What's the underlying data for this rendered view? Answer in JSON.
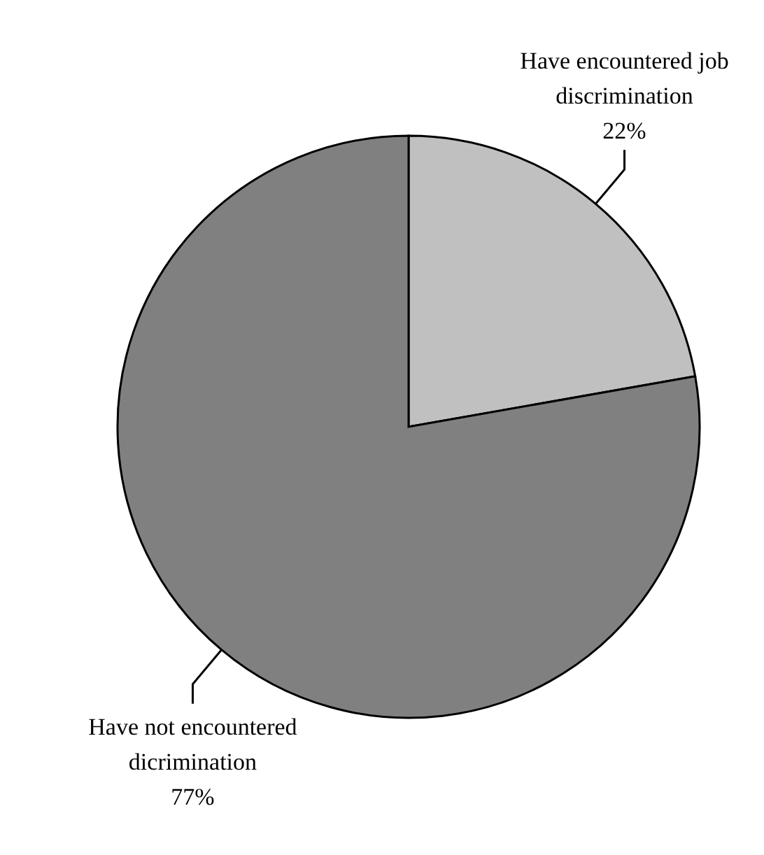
{
  "chart_data": {
    "type": "pie",
    "categories": [
      "Have encountered job discrimination",
      "Have not encountered dicrimination"
    ],
    "values": [
      22,
      77
    ],
    "value_labels": [
      "22%",
      "77%"
    ],
    "colors": [
      "#c0c0c0",
      "#808080"
    ],
    "legend": false
  }
}
